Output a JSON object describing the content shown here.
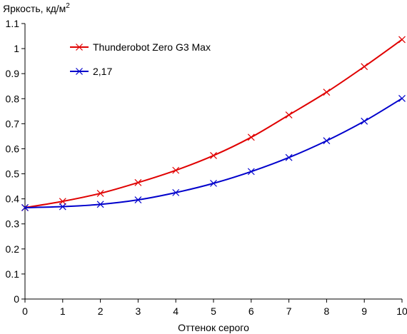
{
  "chart_data": {
    "type": "line",
    "title": "",
    "ylabel": "Яркость, кд/м",
    "ylabel_superscript": "2",
    "xlabel": "Оттенок серого",
    "xlim": [
      0,
      10
    ],
    "ylim": [
      0,
      1.1
    ],
    "x_ticks": [
      "0",
      "1",
      "2",
      "3",
      "4",
      "5",
      "6",
      "7",
      "8",
      "9",
      "10"
    ],
    "y_ticks": [
      "0",
      "0.1",
      "0.2",
      "0.3",
      "0.4",
      "0.5",
      "0.6",
      "0.7",
      "0.8",
      "0.9",
      "1",
      "1.1"
    ],
    "grid": false,
    "legend_position": "top-left",
    "x": [
      0,
      1,
      2,
      3,
      4,
      5,
      6,
      7,
      8,
      9,
      10
    ],
    "series": [
      {
        "name": "Thunderobot Zero G3 Max",
        "color": "#e00000",
        "marker": "x",
        "values": [
          0.365,
          0.39,
          0.422,
          0.465,
          0.514,
          0.573,
          0.646,
          0.735,
          0.826,
          0.928,
          1.036
        ]
      },
      {
        "name": "2,17",
        "color": "#0000cc",
        "marker": "x",
        "values": [
          0.365,
          0.369,
          0.378,
          0.396,
          0.425,
          0.462,
          0.509,
          0.565,
          0.632,
          0.71,
          0.801
        ]
      }
    ]
  }
}
